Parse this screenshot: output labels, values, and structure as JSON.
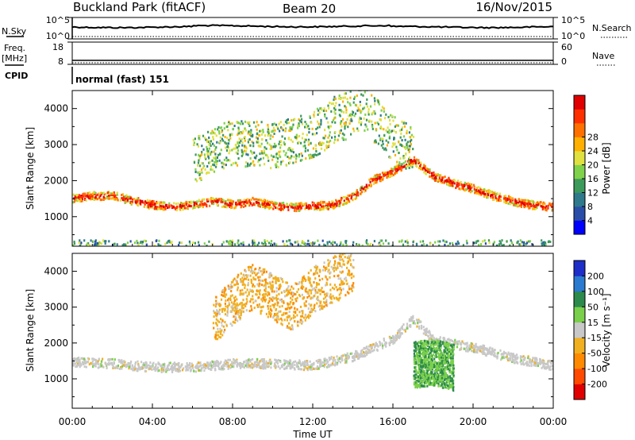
{
  "header": {
    "station_title": "Buckland Park (fitACF)",
    "beam_label": "Beam 20",
    "date_label": "16/Nov/2015"
  },
  "strips": {
    "nsky_label": "N.Sky",
    "nsky_ticks": [
      "10^5",
      "10^0"
    ],
    "nsearch_label": "N.Search",
    "nsearch_ticks": [
      "10^5",
      "10^0"
    ],
    "freq_label": "Freq.",
    "freq_unit": "[MHz]",
    "freq_ticks": [
      "18",
      "8"
    ],
    "nave_label": "Nave",
    "nave_ticks": [
      "60",
      "0"
    ],
    "cpid_label": "CPID",
    "cpid_mode": "normal (fast) 151"
  },
  "panels": {
    "ylabel": "Slant Range [km]",
    "xlabel": "Time UT",
    "power_cbar_label": "Power [dB]",
    "velocity_cbar_label": "Velocity [m s⁻¹]"
  },
  "chart_data": [
    {
      "type": "heatmap",
      "title": "",
      "xlabel": "Time UT",
      "ylabel": "Slant Range [km]",
      "x_ticks": [
        "00:00",
        "04:00",
        "08:00",
        "12:00",
        "16:00",
        "20:00",
        "00:00"
      ],
      "x_hours": [
        0,
        4,
        8,
        12,
        16,
        20,
        24
      ],
      "xlim": [
        0,
        24
      ],
      "y_ticks": [
        1000,
        2000,
        3000,
        4000
      ],
      "ylim": [
        180,
        4500
      ],
      "colorbar": {
        "label": "Power [dB]",
        "ticks": [
          4,
          8,
          12,
          16,
          20,
          24,
          28
        ],
        "colors": [
          "#0000ff",
          "#2a4ea8",
          "#2e7a8c",
          "#3c9a5a",
          "#7fd24a",
          "#e0e040",
          "#ffb000",
          "#ff7000",
          "#ff3000",
          "#e00000"
        ]
      },
      "features": [
        {
          "name": "main band",
          "x": [
            0,
            1,
            2,
            3,
            4,
            5,
            6,
            7,
            8,
            9,
            10,
            11,
            12,
            13,
            14,
            15,
            16,
            17,
            18,
            19,
            20,
            21,
            22,
            23,
            24
          ],
          "y": [
            1540,
            1600,
            1620,
            1470,
            1350,
            1300,
            1360,
            1450,
            1370,
            1450,
            1330,
            1290,
            1320,
            1350,
            1600,
            2050,
            2300,
            2600,
            2150,
            1950,
            1800,
            1600,
            1450,
            1350,
            1300
          ],
          "power_db": 24
        },
        {
          "name": "upper scatter",
          "x": [
            6,
            8,
            10,
            12,
            13,
            14.5,
            16,
            17
          ],
          "y": [
            2600,
            3100,
            3000,
            3300,
            3700,
            4000,
            3200,
            2900
          ],
          "power_db": 16
        },
        {
          "name": "near range",
          "x": [
            0,
            24
          ],
          "y": [
            300,
            300
          ],
          "power_db": 12
        }
      ]
    },
    {
      "type": "heatmap",
      "title": "",
      "xlabel": "Time UT",
      "ylabel": "Slant Range [km]",
      "x_ticks": [
        "00:00",
        "04:00",
        "08:00",
        "12:00",
        "16:00",
        "20:00",
        "00:00"
      ],
      "x_hours": [
        0,
        4,
        8,
        12,
        16,
        20,
        24
      ],
      "xlim": [
        0,
        24
      ],
      "y_ticks": [
        1000,
        2000,
        3000,
        4000
      ],
      "ylim": [
        180,
        4500
      ],
      "colorbar": {
        "label": "Velocity [m s⁻¹]",
        "ticks": [
          200,
          100,
          50,
          15,
          -15,
          -50,
          -100,
          -200
        ],
        "colors": [
          "#1e2ec8",
          "#2a7ad0",
          "#2c8a4c",
          "#7ad04a",
          "#c8c8c8",
          "#f0b020",
          "#ff8a00",
          "#ff4a00",
          "#e00000"
        ]
      },
      "features": [
        {
          "name": "ground scatter",
          "x": [
            0,
            2,
            4,
            6,
            8,
            10,
            12,
            14,
            16,
            17,
            18,
            20,
            22,
            24
          ],
          "y": [
            1500,
            1450,
            1350,
            1350,
            1450,
            1450,
            1400,
            1650,
            2150,
            2700,
            2100,
            1900,
            1600,
            1400
          ],
          "velocity": 0
        },
        {
          "name": "ionospheric scatter",
          "x": [
            7,
            8,
            9,
            10,
            11,
            12,
            13,
            14
          ],
          "y": [
            2600,
            3200,
            3600,
            3300,
            3000,
            3500,
            3800,
            4100
          ],
          "velocity": -40
        },
        {
          "name": "positive patch",
          "x": [
            17,
            18,
            19
          ],
          "y": [
            1400,
            1500,
            1350
          ],
          "velocity": 60
        }
      ]
    }
  ]
}
